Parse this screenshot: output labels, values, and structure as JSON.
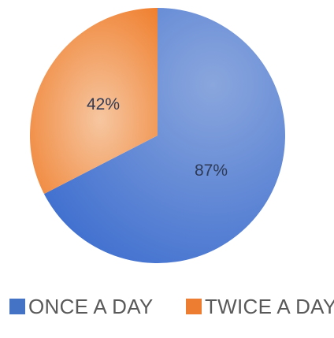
{
  "chart_data": {
    "type": "pie",
    "title": "",
    "slices": [
      {
        "label": "ONCE A DAY",
        "value": 87,
        "display": "87%",
        "color": "#4472c4"
      },
      {
        "label": "TWICE A DAY",
        "value": 42,
        "display": "42%",
        "color": "#ed7d31"
      }
    ],
    "legend_position": "bottom"
  }
}
